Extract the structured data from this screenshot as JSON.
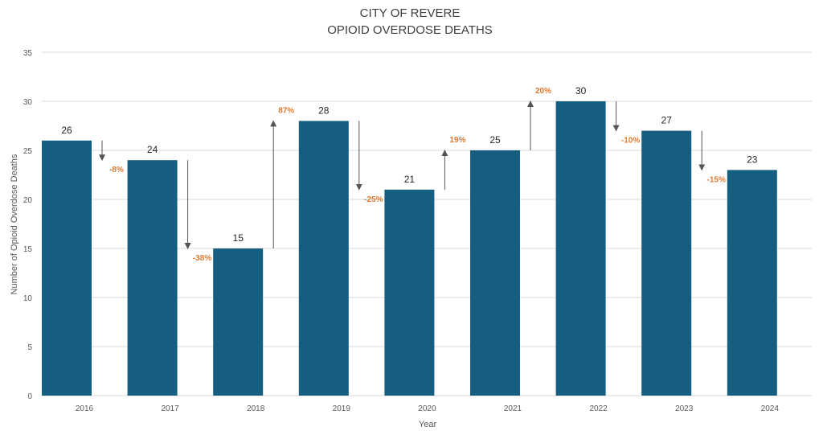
{
  "chart_data": {
    "type": "bar",
    "title_line1": "CITY OF REVERE",
    "title_line2": "OPIOID OVERDOSE DEATHS",
    "xlabel": "Year",
    "ylabel": "Number of Opioid Overdose Deaths",
    "ylim": [
      0,
      35
    ],
    "yticks": [
      0,
      5,
      10,
      15,
      20,
      25,
      30,
      35
    ],
    "grid": true,
    "categories": [
      "2016",
      "2017",
      "2018",
      "2019",
      "2020",
      "2021",
      "2022",
      "2023",
      "2024"
    ],
    "values": [
      26,
      24,
      15,
      28,
      21,
      25,
      30,
      27,
      23
    ],
    "changes": [
      "-8%",
      "-38%",
      "87%",
      "-25%",
      "19%",
      "20%",
      "-10%",
      "-15%"
    ],
    "colors": {
      "bar": "#155E80",
      "change_label": "#E07A2E",
      "arrow": "#555555",
      "grid": "#D9D9D9",
      "axis_text": "#595959",
      "title": "#404040"
    }
  }
}
